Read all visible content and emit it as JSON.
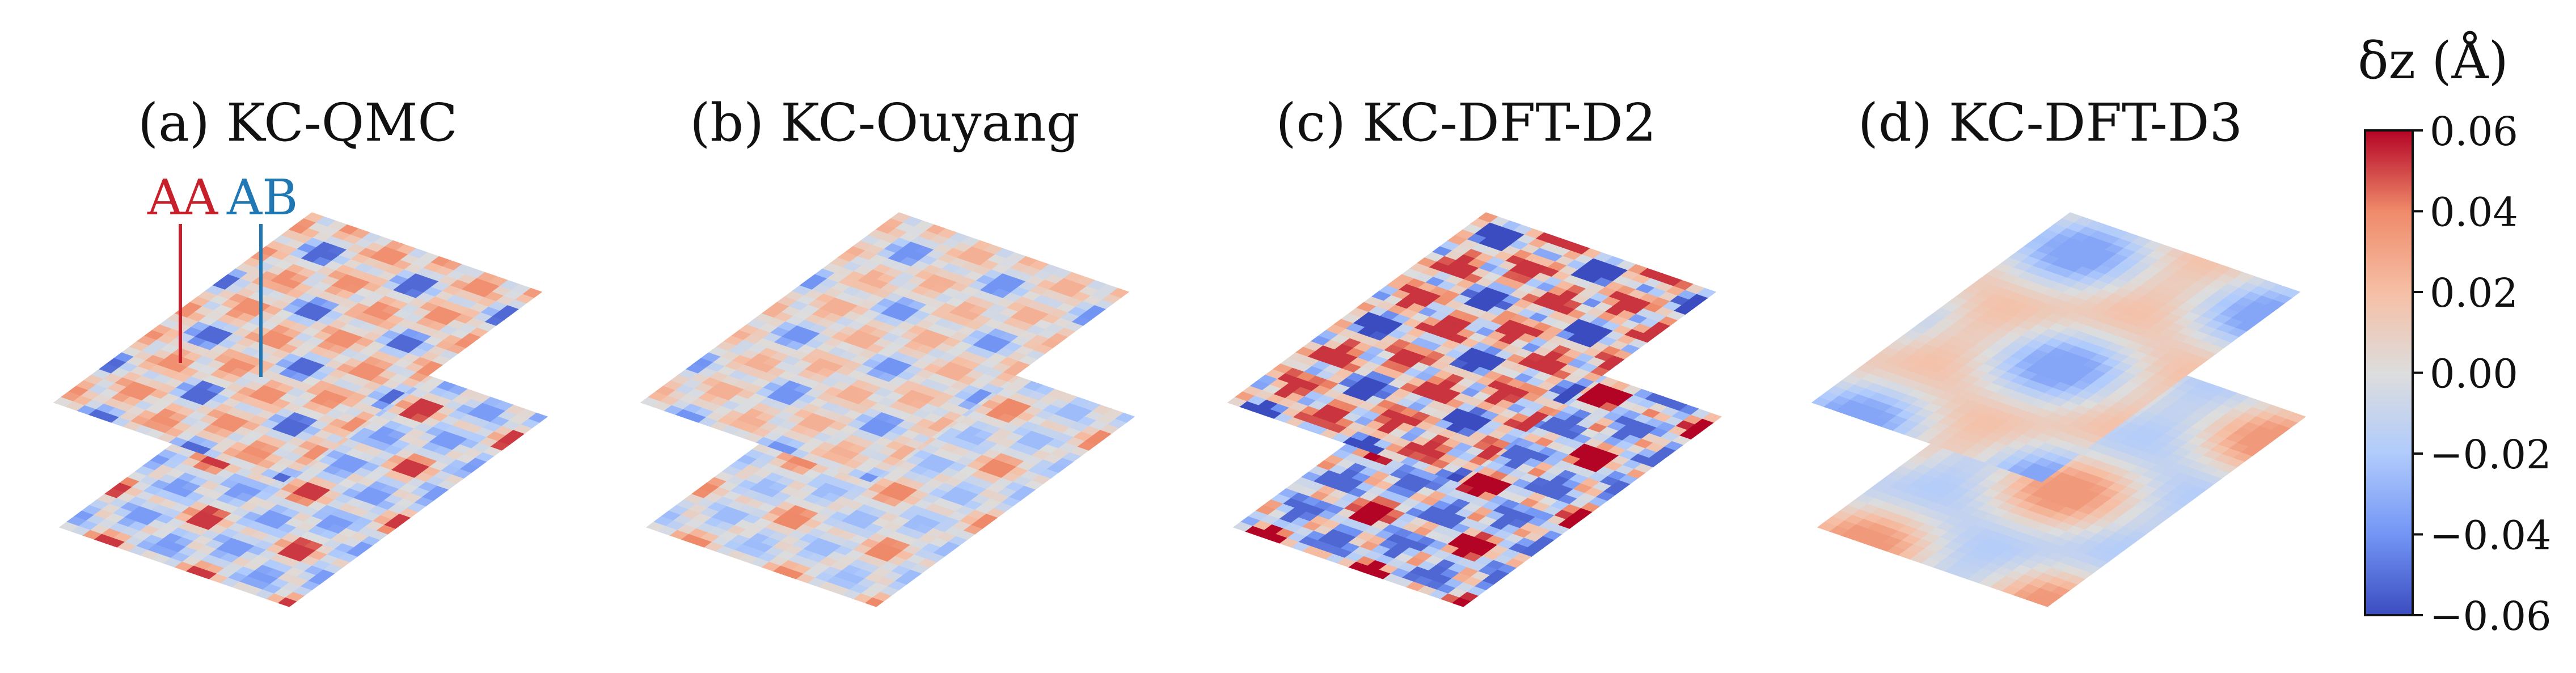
{
  "panels": [
    {
      "label": "(a) KC-QMC",
      "pattern": "triangular",
      "strength": 0.75,
      "period": 4.6
    },
    {
      "label": "(b) KC-Ouyang",
      "pattern": "triangular",
      "strength": 0.55,
      "period": 4.6
    },
    {
      "label": "(c) KC-DFT-D2",
      "pattern": "star",
      "strength": 1.0,
      "period": 4.3
    },
    {
      "label": "(d) KC-DFT-D3",
      "pattern": "smooth",
      "strength": 0.45,
      "period": 2.3
    }
  ],
  "annotations": {
    "aa_label": "AA",
    "ab_label": "AB",
    "aa_color": "#c8202b",
    "ab_color": "#1f77b4"
  },
  "colorbar": {
    "title": "δz (Å)",
    "min": -0.06,
    "max": 0.06,
    "ticks": [
      "0.06",
      "0.04",
      "0.02",
      "0.00",
      "−0.02",
      "−0.04",
      "−0.06"
    ],
    "colormap": "coolwarm",
    "colors": [
      "#3b4cc0",
      "#7396f5",
      "#b0cbfc",
      "#dddddd",
      "#f6bfa5",
      "#ef8a6a",
      "#b40426"
    ]
  }
}
